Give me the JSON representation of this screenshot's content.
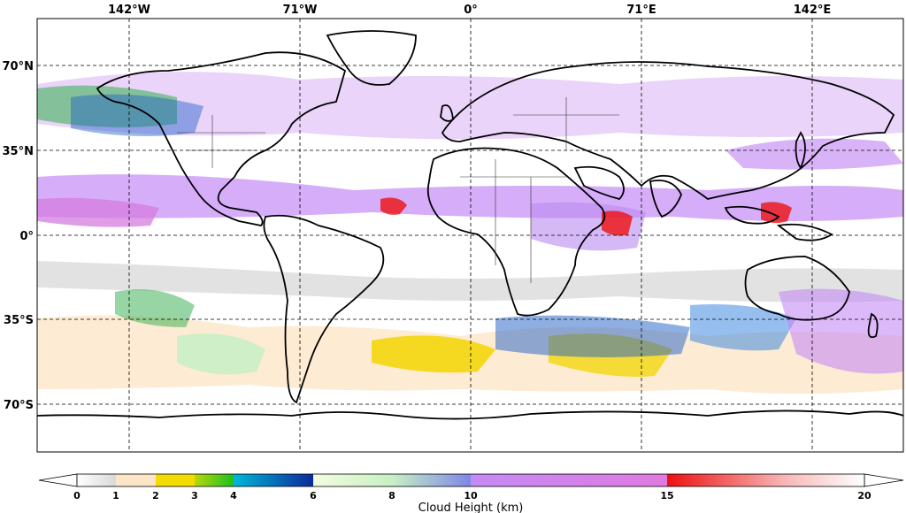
{
  "map": {
    "longitude_labels": [
      "142°W",
      "71°W",
      "0°",
      "71°E",
      "142°E"
    ],
    "latitude_labels": [
      "70°N",
      "35°N",
      "0°",
      "35°S",
      "70°S"
    ],
    "gridlines": "dashed"
  },
  "colorbar": {
    "title": "Cloud Height (km)",
    "ticks": [
      "0",
      "1",
      "2",
      "3",
      "4",
      "6",
      "8",
      "10",
      "15",
      "20"
    ],
    "segments": [
      {
        "from": 0,
        "to": 1,
        "colors": [
          "#ffffff",
          "#d9d9d9"
        ]
      },
      {
        "from": 1,
        "to": 2,
        "colors": [
          "#fde6c8",
          "#fde6c8"
        ]
      },
      {
        "from": 2,
        "to": 3,
        "colors": [
          "#f2d600",
          "#f7e000"
        ]
      },
      {
        "from": 3,
        "to": 4,
        "colors": [
          "#b7d80a",
          "#1fbf1f"
        ]
      },
      {
        "from": 4,
        "to": 6,
        "colors": [
          "#00b8d8",
          "#0b2a9a"
        ]
      },
      {
        "from": 6,
        "to": 10,
        "colors": [
          "#f4fce0",
          "#c6f0c4",
          "#7f86e8"
        ]
      },
      {
        "from": 10,
        "to": 15,
        "colors": [
          "#c58af5",
          "#e07ae0"
        ]
      },
      {
        "from": 15,
        "to": 20,
        "colors": [
          "#ee1010",
          "#f9d0d0",
          "#ffffff"
        ]
      }
    ]
  }
}
